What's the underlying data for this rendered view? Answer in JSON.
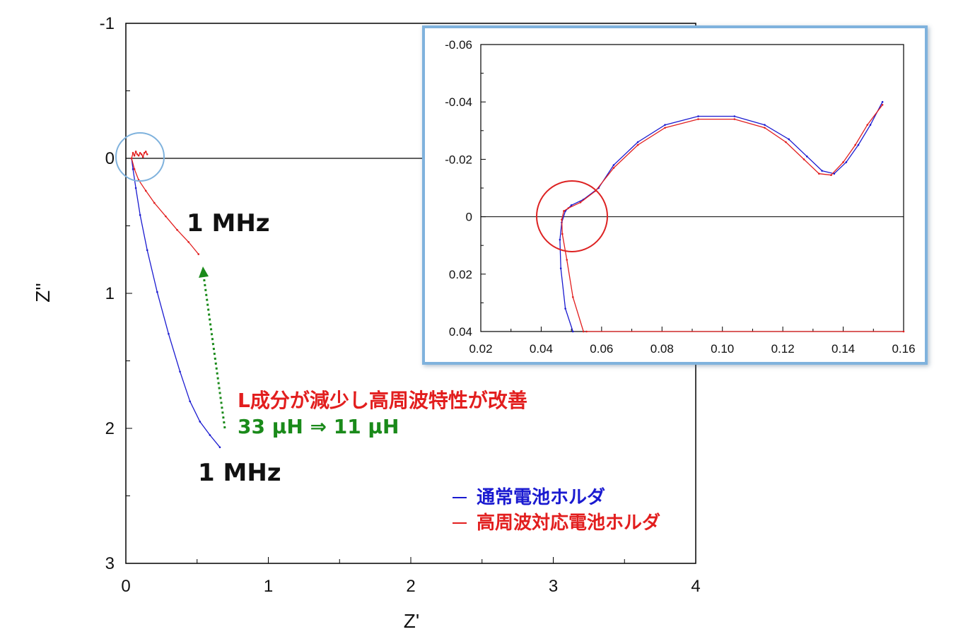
{
  "colors": {
    "series_normal": "#1a1ad0",
    "series_hf": "#e21e1e",
    "green": "#1a8a1a",
    "inset_border": "#7fb2dd",
    "circle_main": "#7fb2dd",
    "circle_inset": "#dd2222"
  },
  "chart_data": [
    {
      "type": "line",
      "title": "",
      "xlabel": "Z'",
      "ylabel": "Z''",
      "xlim": [
        0,
        4
      ],
      "ylim": [
        -1,
        3
      ],
      "y_inverted": true,
      "x_ticks": [
        "0",
        "1",
        "2",
        "3",
        "4"
      ],
      "y_ticks": [
        "-1",
        "0",
        "1",
        "2",
        "3"
      ],
      "grid": false,
      "zero_line": true,
      "series": [
        {
          "name": "通常電池ホルダ",
          "color": "#1a1ad0",
          "x": [
            0.04,
            0.05,
            0.07,
            0.1,
            0.15,
            0.22,
            0.3,
            0.38,
            0.45,
            0.52,
            0.59,
            0.66
          ],
          "y": [
            0.0,
            0.08,
            0.22,
            0.42,
            0.68,
            0.99,
            1.3,
            1.58,
            1.8,
            1.95,
            2.05,
            2.14
          ]
        },
        {
          "name": "高周波対応電池ホルダ",
          "color": "#e21e1e",
          "x": [
            0.04,
            0.06,
            0.09,
            0.14,
            0.2,
            0.28,
            0.36,
            0.44,
            0.51
          ],
          "y": [
            0.0,
            0.08,
            0.16,
            0.24,
            0.33,
            0.43,
            0.53,
            0.62,
            0.71
          ]
        },
        {
          "name": "",
          "color": "#e21e1e",
          "x": [
            0.04,
            0.05,
            0.06,
            0.07,
            0.08,
            0.09,
            0.1,
            0.11,
            0.12,
            0.13,
            0.14,
            0.15
          ],
          "y": [
            0.0,
            -0.04,
            -0.02,
            -0.05,
            -0.03,
            -0.02,
            -0.04,
            -0.03,
            -0.01,
            -0.04,
            -0.05,
            -0.03
          ]
        }
      ]
    },
    {
      "type": "line",
      "title": "",
      "xlabel": "",
      "ylabel": "",
      "xlim": [
        0.02,
        0.16
      ],
      "ylim": [
        -0.06,
        0.04
      ],
      "y_inverted": true,
      "x_ticks": [
        "0.02",
        "0.04",
        "0.06",
        "0.08",
        "0.10",
        "0.12",
        "0.14",
        "0.16"
      ],
      "y_ticks": [
        "-0.06",
        "-0.04",
        "-0.02",
        "0",
        "0.02",
        "0.04"
      ],
      "grid": false,
      "zero_line": true,
      "series": [
        {
          "name": "通常電池ホルダ",
          "color": "#1a1ad0",
          "x": [
            0.0505,
            0.048,
            0.0465,
            0.0462,
            0.0468,
            0.048,
            0.05,
            0.054,
            0.059,
            0.064,
            0.072,
            0.081,
            0.092,
            0.104,
            0.114,
            0.122,
            0.128,
            0.133,
            0.137,
            0.141,
            0.145,
            0.149,
            0.153
          ],
          "y": [
            0.04,
            0.032,
            0.018,
            0.008,
            0.002,
            -0.002,
            -0.004,
            -0.006,
            -0.01,
            -0.018,
            -0.026,
            -0.032,
            -0.035,
            -0.035,
            -0.032,
            -0.027,
            -0.021,
            -0.016,
            -0.015,
            -0.019,
            -0.025,
            -0.032,
            -0.04
          ]
        },
        {
          "name": "高周波対応電池ホルダ",
          "color": "#e21e1e",
          "x": [
            0.054,
            0.0505,
            0.0485,
            0.047,
            0.0468,
            0.0475,
            0.049,
            0.053,
            0.058,
            0.064,
            0.072,
            0.081,
            0.092,
            0.104,
            0.114,
            0.121,
            0.127,
            0.132,
            0.136,
            0.14,
            0.144,
            0.148,
            0.153
          ],
          "y": [
            0.04,
            0.028,
            0.015,
            0.006,
            0.001,
            -0.002,
            -0.003,
            -0.005,
            -0.009,
            -0.017,
            -0.025,
            -0.031,
            -0.034,
            -0.034,
            -0.031,
            -0.026,
            -0.02,
            -0.015,
            -0.0145,
            -0.019,
            -0.025,
            -0.032,
            -0.039
          ]
        },
        {
          "name": "",
          "color": "#e21e1e",
          "x": [
            0.055,
            0.16
          ],
          "y": [
            0.04,
            0.04
          ]
        }
      ]
    }
  ],
  "annotations": {
    "freq_red": "1 MHz",
    "freq_blue": "1 MHz",
    "improvement": "L成分が減少し高周波特性が改善",
    "inductance": "33 μH ⇒ 11 μH"
  },
  "legend": {
    "items": [
      {
        "swatch": "–",
        "label": "通常電池ホルダ",
        "color": "#1a1ad0"
      },
      {
        "swatch": "–",
        "label": "高周波対応電池ホルダ",
        "color": "#e21e1e"
      }
    ]
  }
}
